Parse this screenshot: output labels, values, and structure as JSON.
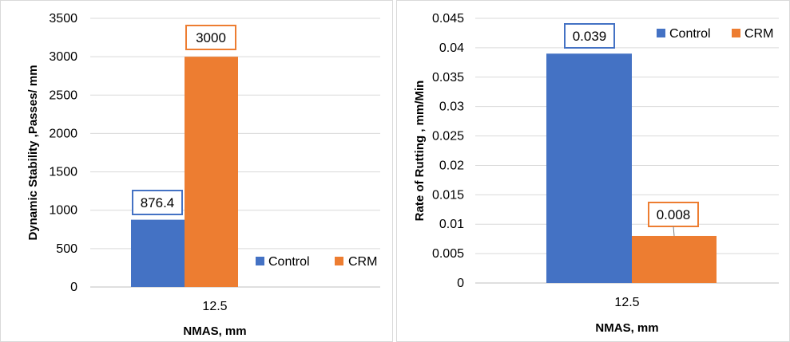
{
  "colors": {
    "control": "#4472c4",
    "crm": "#ed7d31",
    "grid": "#d9d9d9",
    "axis": "#bfbfbf",
    "frame": "#d9d9d9"
  },
  "chart_data": [
    {
      "type": "bar",
      "categories": [
        "12.5"
      ],
      "series": [
        {
          "name": "Control",
          "values": [
            876.4
          ],
          "label": "876.4"
        },
        {
          "name": "CRM",
          "values": [
            3000
          ],
          "label": "3000"
        }
      ],
      "xlabel": "NMAS, mm",
      "ylabel": "Dynamic Stability ,Passes/ mm",
      "ylim": [
        0,
        3500
      ],
      "yticks": [
        "0",
        "500",
        "1000",
        "1500",
        "2000",
        "2500",
        "3000",
        "3500"
      ],
      "grid": true,
      "legend_position": "bottom-right"
    },
    {
      "type": "bar",
      "categories": [
        "12.5"
      ],
      "series": [
        {
          "name": "Control",
          "values": [
            0.039
          ],
          "label": "0.039"
        },
        {
          "name": "CRM",
          "values": [
            0.008
          ],
          "label": "0.008"
        }
      ],
      "xlabel": "NMAS, mm",
      "ylabel": "Rate of Rutting , mm/Min",
      "ylim": [
        0,
        0.045
      ],
      "yticks": [
        "0",
        "0.005",
        "0.01",
        "0.015",
        "0.02",
        "0.025",
        "0.03",
        "0.035",
        "0.04",
        "0.045"
      ],
      "grid": true,
      "legend_position": "top-right"
    }
  ]
}
